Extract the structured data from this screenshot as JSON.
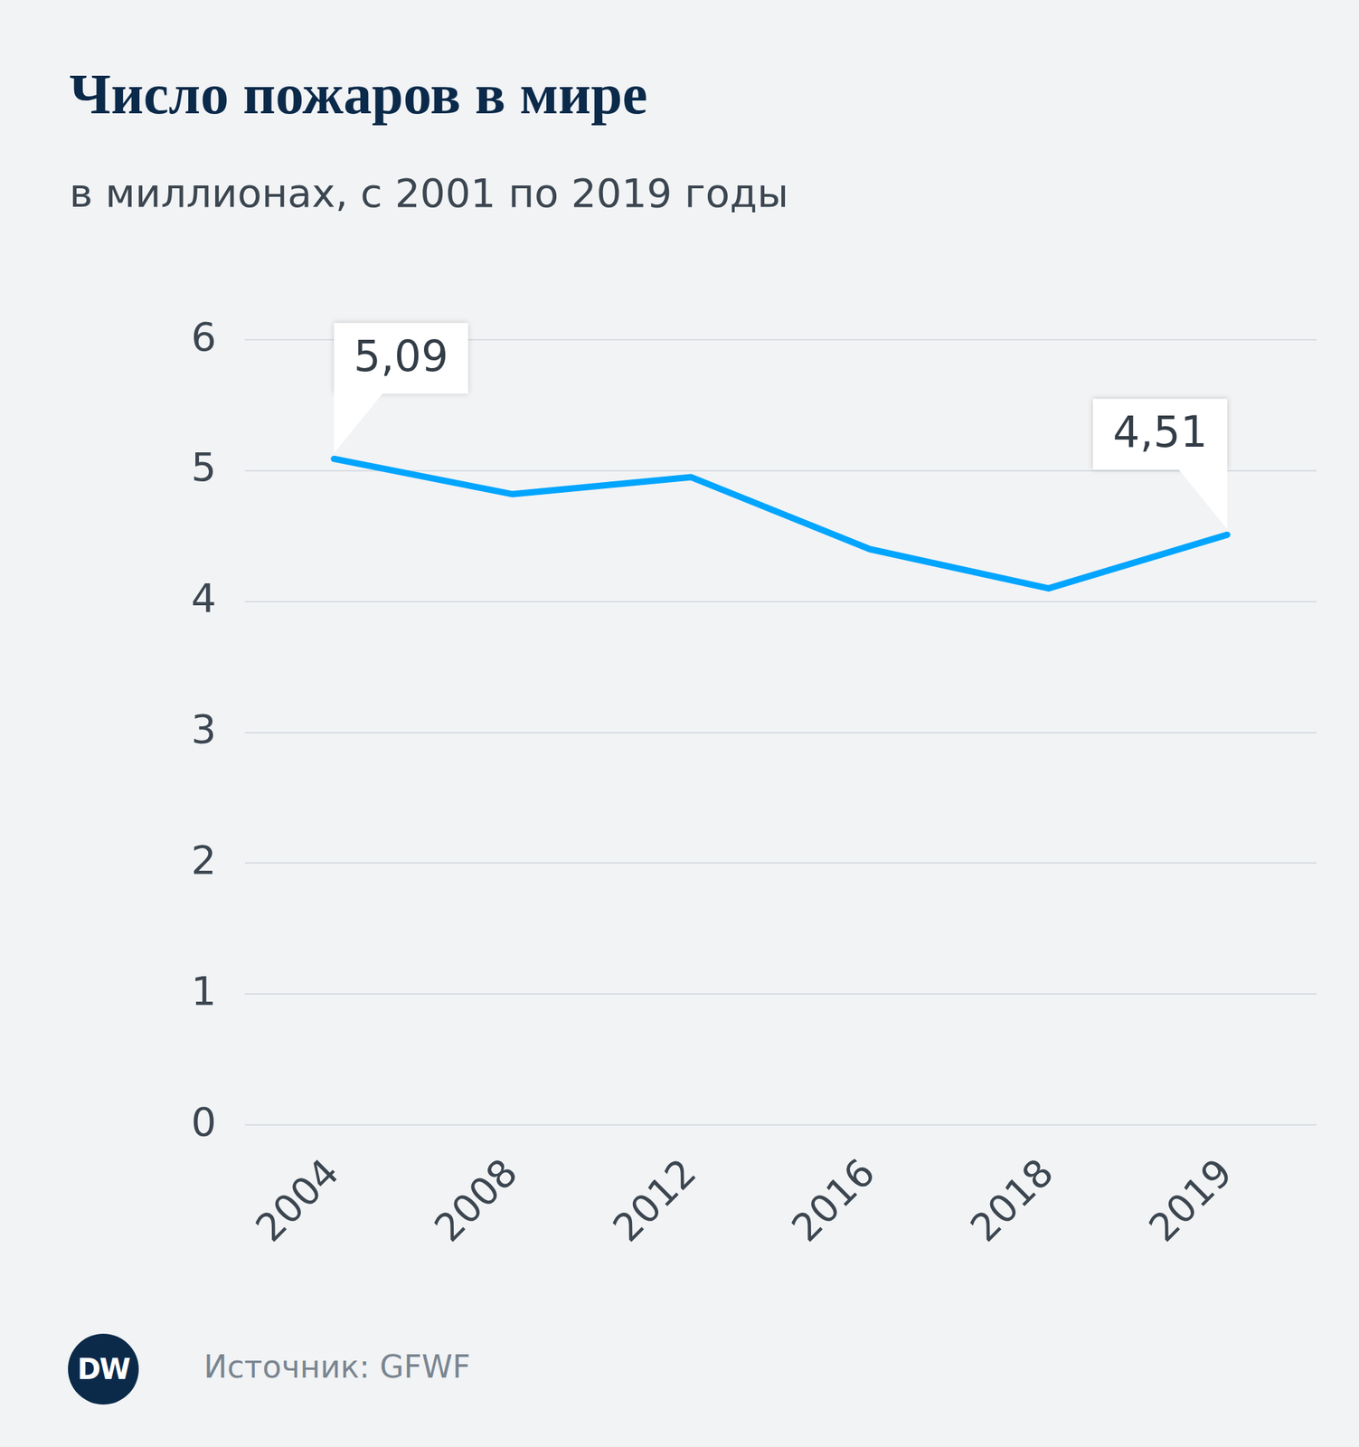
{
  "chart_data": {
    "type": "line",
    "title": "Число пожаров в мире",
    "subtitle": "в миллионах, с 2001 по 2019 годы",
    "categories": [
      "2004",
      "2008",
      "2012",
      "2016",
      "2018",
      "2019"
    ],
    "values": [
      5.09,
      4.82,
      4.95,
      4.4,
      4.1,
      4.51
    ],
    "value_labels": [
      "5,09",
      null,
      null,
      null,
      null,
      "4,51"
    ],
    "data_labels": true,
    "color": "#00a5ff",
    "ylim": [
      0,
      6
    ],
    "yticks": [
      0,
      1,
      2,
      3,
      4,
      5,
      6
    ],
    "grid": true,
    "source": "Источник: GFWF",
    "logo": "DW"
  }
}
